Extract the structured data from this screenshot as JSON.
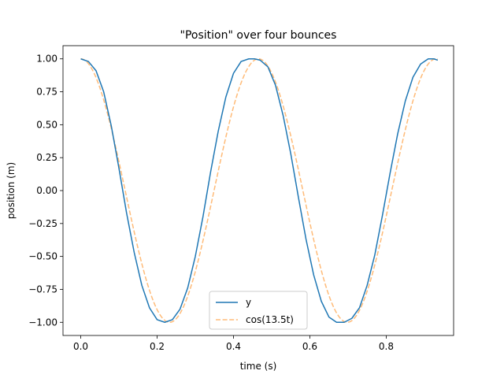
{
  "chart_data": {
    "type": "line",
    "title": "\"Position\" over four bounces",
    "xlabel": "time (s)",
    "ylabel": "position (m)",
    "xlim": [
      -0.0465,
      0.9765
    ],
    "ylim": [
      -1.1,
      1.1
    ],
    "xticks": [
      0.0,
      0.2,
      0.4,
      0.6,
      0.8
    ],
    "xtick_labels": [
      "0.0",
      "0.2",
      "0.4",
      "0.6",
      "0.8"
    ],
    "yticks": [
      1.0,
      0.75,
      0.5,
      0.25,
      0.0,
      -0.25,
      -0.5,
      -0.75,
      -1.0
    ],
    "ytick_labels": [
      "1.00",
      "0.75",
      "0.50",
      "0.25",
      "0.00",
      "−0.25",
      "−0.50",
      "−0.75",
      "−1.00"
    ],
    "grid": false,
    "legend": "lower center",
    "series": [
      {
        "name": "y",
        "style": "solid",
        "color": "#1f77b4",
        "x": [
          0.0,
          0.02,
          0.04,
          0.06,
          0.08,
          0.1,
          0.12,
          0.14,
          0.16,
          0.18,
          0.2,
          0.22,
          0.24,
          0.26,
          0.28,
          0.3,
          0.32,
          0.34,
          0.36,
          0.38,
          0.4,
          0.42,
          0.44,
          0.455,
          0.47,
          0.49,
          0.51,
          0.53,
          0.55,
          0.57,
          0.59,
          0.61,
          0.63,
          0.65,
          0.67,
          0.69,
          0.71,
          0.73,
          0.75,
          0.77,
          0.79,
          0.81,
          0.83,
          0.85,
          0.87,
          0.89,
          0.91,
          0.925,
          0.935
        ],
        "y": [
          1.0,
          0.98,
          0.91,
          0.75,
          0.49,
          0.17,
          -0.17,
          -0.47,
          -0.72,
          -0.89,
          -0.98,
          -1.0,
          -0.98,
          -0.9,
          -0.74,
          -0.5,
          -0.2,
          0.14,
          0.45,
          0.71,
          0.89,
          0.98,
          1.0,
          1.0,
          0.99,
          0.94,
          0.8,
          0.57,
          0.28,
          -0.05,
          -0.37,
          -0.64,
          -0.84,
          -0.96,
          -1.0,
          -1.0,
          -0.97,
          -0.89,
          -0.72,
          -0.49,
          -0.19,
          0.13,
          0.43,
          0.68,
          0.86,
          0.96,
          1.0,
          1.0,
          0.99
        ]
      },
      {
        "name": "cos(13.5t)",
        "style": "dashed",
        "color": "#ffbb78",
        "func": "cos(13.5t)",
        "x_range": [
          0.0,
          0.935
        ]
      }
    ]
  }
}
